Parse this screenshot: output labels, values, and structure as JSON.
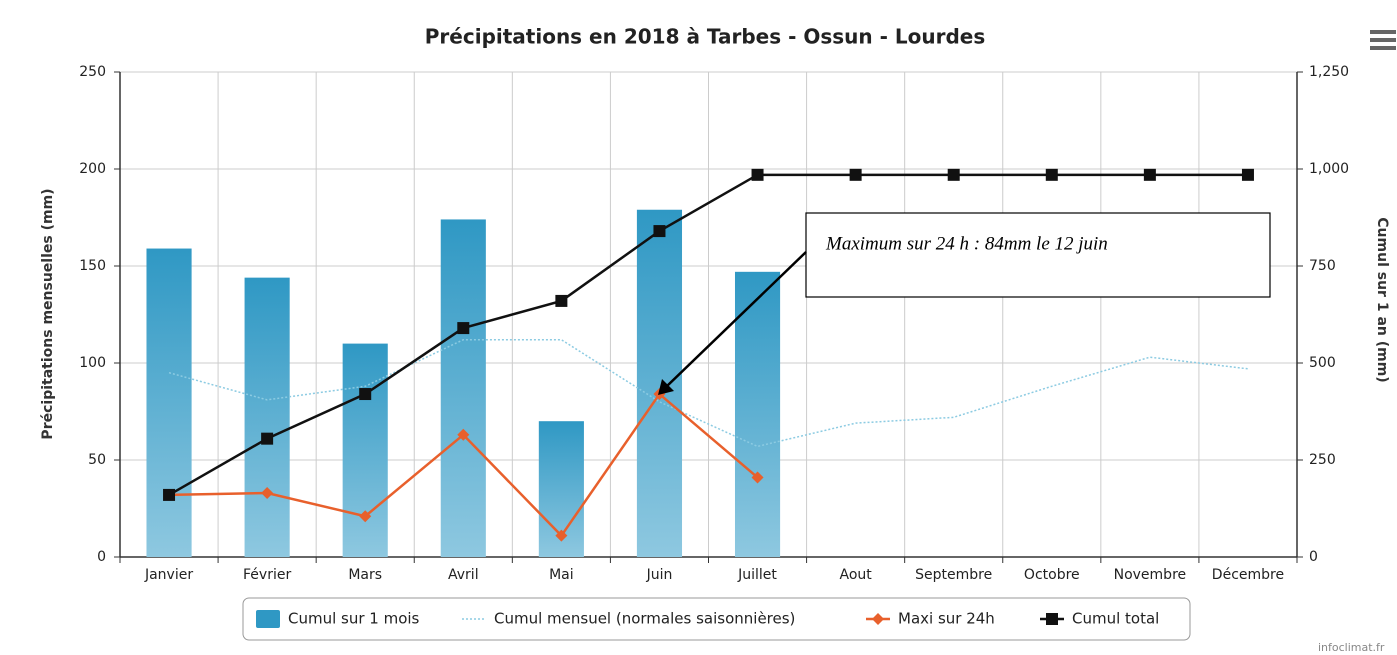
{
  "chart_data": {
    "type": "combo",
    "title": "Précipitations en 2018 à Tarbes - Ossun - Lourdes",
    "y_label": "Précipitations mensuelles (mm)",
    "y2_label": "Cumul sur 1 an (mm)",
    "annotation": "Maximum sur 24 h : 84mm le 12 juin",
    "credit": "infoclimat.fr",
    "categories": [
      "Janvier",
      "Février",
      "Mars",
      "Avril",
      "Mai",
      "Juin",
      "Juillet",
      "Aout",
      "Septembre",
      "Octobre",
      "Novembre",
      "Décembre"
    ],
    "ylim": [
      0,
      250
    ],
    "yticks": [
      0,
      50,
      100,
      150,
      200,
      250
    ],
    "y2lim": [
      0,
      1250
    ],
    "y2ticks": [
      0,
      250,
      500,
      750,
      {
        "value": 1000,
        "label": "1,000"
      },
      {
        "value": 1250,
        "label": "1,250"
      }
    ],
    "grid": true,
    "legend": "bottom",
    "series": [
      {
        "name": "Cumul sur 1 mois",
        "type": "bar",
        "color": "#2f98c4",
        "values": [
          159,
          144,
          110,
          174,
          70,
          179,
          147,
          null,
          null,
          null,
          null,
          null
        ]
      },
      {
        "name": "Cumul mensuel (normales saisonnières)",
        "type": "line",
        "dash": "dotted",
        "color": "#8ccbe2",
        "values": [
          95,
          81,
          88,
          112,
          112,
          80,
          57,
          69,
          72,
          88,
          103,
          97
        ]
      },
      {
        "name": "Maxi sur 24h",
        "type": "line",
        "marker": "diamond",
        "color": "#e8602c",
        "values": [
          32,
          33,
          21,
          63,
          11,
          84,
          41,
          null,
          null,
          null,
          null,
          null
        ]
      },
      {
        "name": "Cumul total",
        "type": "line",
        "marker": "square",
        "color": "#111111",
        "axis": "y2",
        "values": [
          160,
          305,
          420,
          590,
          660,
          840,
          985,
          985,
          985,
          985,
          985,
          985
        ]
      }
    ]
  }
}
